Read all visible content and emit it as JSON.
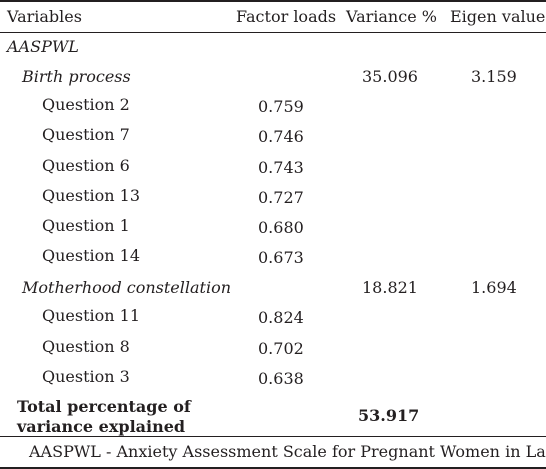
{
  "headers": {
    "variables": "Variables",
    "factor_loads": "Factor loads",
    "variance": "Variance %",
    "eigen": "Eigen value"
  },
  "scale_label": "AASPWL",
  "factors": [
    {
      "name": "Birth process",
      "variance": "35.096",
      "eigen": "3.159",
      "items": [
        {
          "question": "Question 2",
          "load": "0.759"
        },
        {
          "question": "Question 7",
          "load": "0.746"
        },
        {
          "question": "Question 6",
          "load": "0.743"
        },
        {
          "question": "Question 13",
          "load": "0.727"
        },
        {
          "question": "Question 1",
          "load": "0.680"
        },
        {
          "question": "Question 14",
          "load": "0.673"
        }
      ]
    },
    {
      "name": "Motherhood constellation",
      "variance": "18.821",
      "eigen": "1.694",
      "items": [
        {
          "question": "Question 11",
          "load": "0.824"
        },
        {
          "question": "Question 8",
          "load": "0.702"
        },
        {
          "question": "Question 3",
          "load": "0.638"
        }
      ]
    }
  ],
  "total": {
    "label": "Total percentage of variance explained",
    "value": "53.917"
  },
  "footnote": "AASPWL - Anxiety Assessment Scale for Pregnant Women in Labor",
  "colors": {
    "text": "#231f20",
    "rule": "#231f20",
    "background": "#ffffff"
  }
}
